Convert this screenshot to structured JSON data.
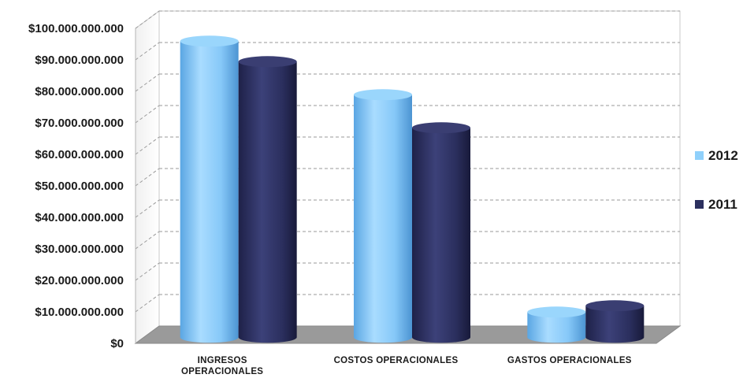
{
  "chart_data": {
    "type": "bar",
    "categories": [
      [
        "INGRESOS",
        "OPERACIONALES"
      ],
      [
        "COSTOS OPERACIONALES"
      ],
      [
        "GASTOS OPERACIONALES"
      ]
    ],
    "series": [
      {
        "name": "2012",
        "values": [
          94000000000,
          77000000000,
          8000000000
        ]
      },
      {
        "name": "2011",
        "values": [
          87500000000,
          66500000000,
          10000000000
        ]
      }
    ],
    "ylim": [
      0,
      100000000000
    ],
    "yticks": [
      {
        "value": 0,
        "label": "$0"
      },
      {
        "value": 10000000000,
        "label": "$10.000.000.000"
      },
      {
        "value": 20000000000,
        "label": "$20.000.000.000"
      },
      {
        "value": 30000000000,
        "label": "$30.000.000.000"
      },
      {
        "value": 40000000000,
        "label": "$40.000.000.000"
      },
      {
        "value": 50000000000,
        "label": "$50.000.000.000"
      },
      {
        "value": 60000000000,
        "label": "$60.000.000.000"
      },
      {
        "value": 70000000000,
        "label": "$70.000.000.000"
      },
      {
        "value": 80000000000,
        "label": "$80.000.000.000"
      },
      {
        "value": 90000000000,
        "label": "$90.000.000.000"
      },
      {
        "value": 100000000000,
        "label": "$100.000.000.000"
      }
    ],
    "grid": true,
    "legend": "right",
    "colors": {
      "2012": "#8fd0fb",
      "2011": "#2b2f5e"
    }
  }
}
